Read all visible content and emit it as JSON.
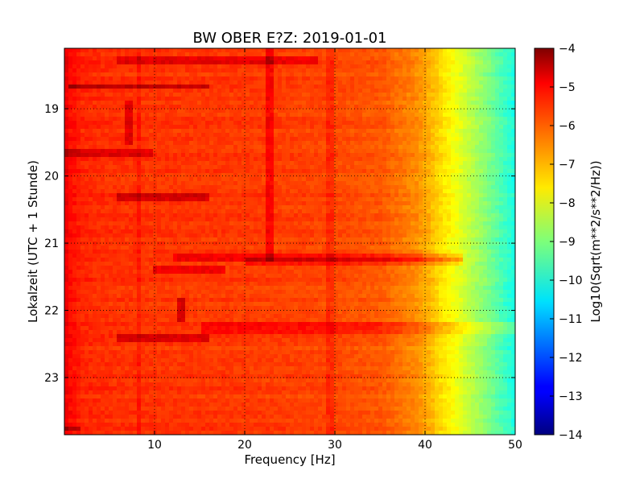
{
  "chart_data": {
    "type": "heatmap",
    "title": "BW OBER E?Z: 2019-01-01",
    "xlabel": "Frequency [Hz]",
    "ylabel": "Lokalzeit (UTC + 1 Stunde)",
    "xlim": [
      0,
      50
    ],
    "ylim": [
      23.85,
      18.1
    ],
    "x_ticks": [
      10,
      20,
      30,
      40,
      50
    ],
    "x_tick_labels": [
      "10",
      "20",
      "30",
      "40",
      "50"
    ],
    "y_ticks": [
      19,
      20,
      21,
      22,
      23
    ],
    "y_tick_labels": [
      "19",
      "20",
      "21",
      "22",
      "23"
    ],
    "grid": true,
    "colormap": "jet",
    "colorbar": {
      "label": "Log10(Sqrt(m**2/s**2/Hz))",
      "range": [
        -14,
        -4
      ],
      "ticks": [
        -4,
        -5,
        -6,
        -7,
        -8,
        -9,
        -10,
        -11,
        -12,
        -13,
        -14
      ],
      "tick_labels": [
        "−4",
        "−5",
        "−6",
        "−7",
        "−8",
        "−9",
        "−10",
        "−11",
        "−12",
        "−13",
        "−14"
      ]
    },
    "spectrum_profile": {
      "frequency": [
        0,
        0.5,
        2,
        5,
        10,
        20,
        28,
        35,
        39,
        40.5,
        42,
        43.5,
        45,
        47,
        49,
        50
      ],
      "value": [
        -5.0,
        -5.3,
        -5.6,
        -5.7,
        -5.75,
        -5.8,
        -5.9,
        -6.1,
        -6.6,
        -7.0,
        -7.5,
        -7.9,
        -8.4,
        -9.0,
        -9.7,
        -10.0
      ]
    },
    "horizontal_features": [
      {
        "time": 18.28,
        "f_start": 6,
        "f_end": 28,
        "delta": 0.7
      },
      {
        "time": 18.68,
        "f_start": 0.5,
        "f_end": 16,
        "delta": 1.0
      },
      {
        "time": 19.65,
        "f_start": 0,
        "f_end": 10,
        "delta": 0.7
      },
      {
        "time": 20.3,
        "f_start": 6,
        "f_end": 16,
        "delta": 0.9
      },
      {
        "time": 21.2,
        "f_start": 12,
        "f_end": 44,
        "delta": 0.6
      },
      {
        "time": 21.28,
        "f_start": 20,
        "f_end": 44,
        "delta": 0.5
      },
      {
        "time": 21.38,
        "f_start": 10,
        "f_end": 18,
        "delta": 0.7
      },
      {
        "time": 22.23,
        "f_start": 15,
        "f_end": 50,
        "delta": 0.5
      },
      {
        "time": 22.33,
        "f_start": 15,
        "f_end": 50,
        "delta": 0.45
      },
      {
        "time": 22.42,
        "f_start": 6,
        "f_end": 16,
        "delta": 0.8
      },
      {
        "time": 23.75,
        "f_start": 0,
        "f_end": 2,
        "delta": 0.8
      }
    ],
    "vertical_features": [
      {
        "frequency": 7.2,
        "t_start": 18.9,
        "t_end": 19.55,
        "delta": 0.8
      },
      {
        "frequency": 8.2,
        "t_start": 18.1,
        "t_end": 23.85,
        "delta": 0.25
      },
      {
        "frequency": 12.9,
        "t_start": 21.8,
        "t_end": 22.2,
        "delta": 1.0
      },
      {
        "frequency": 22.8,
        "t_start": 18.1,
        "t_end": 21.3,
        "delta": 0.6
      },
      {
        "frequency": 29.5,
        "t_start": 18.1,
        "t_end": 23.85,
        "delta": 0.3
      }
    ]
  }
}
